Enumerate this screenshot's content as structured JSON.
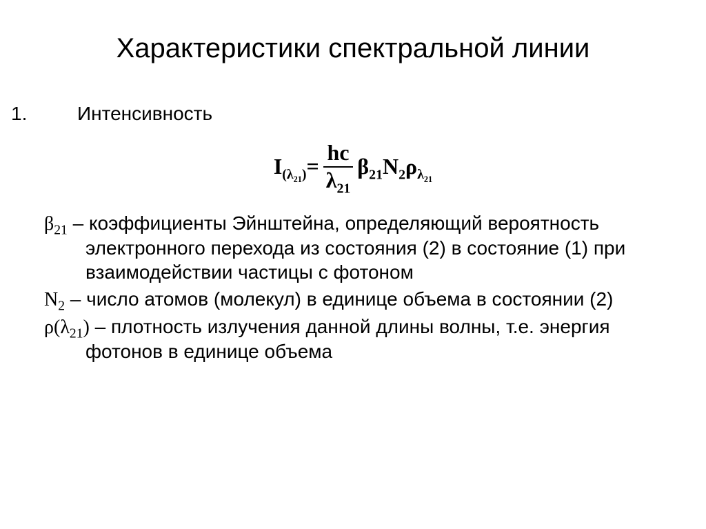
{
  "title": "Характеристики спектральной линии",
  "item_number": "1.",
  "item_label": "Интенсивность",
  "formula": {
    "lhs_I": "I",
    "lhs_sub_open": "(λ",
    "lhs_sub_21": "21",
    "lhs_sub_close": ")",
    "eq": " = ",
    "frac_num": "hc",
    "frac_den_sym": "λ",
    "frac_den_sub": "21",
    "beta": "β",
    "beta_sub": "21",
    "N": "N",
    "N_sub": "2",
    "rho": "ρ",
    "rho_sub_sym": "λ",
    "rho_sub_21": "21"
  },
  "defs": {
    "d1_sym": "β",
    "d1_sub": "21",
    "d1_text": " – коэффициенты Эйнштейна, определяющий вероятность электронного перехода из состояния (2) в состояние (1) при взаимодействии частицы с фотоном",
    "d2_sym": "N",
    "d2_sub": "2",
    "d2_text": " – число атомов (молекул) в единице объема в состоянии (2)",
    "d3_sym_rho": "ρ",
    "d3_sym_open": "(",
    "d3_sym_lambda": "λ",
    "d3_sub": "21",
    "d3_sym_close": ")",
    "d3_text": " – плотность излучения данной длины волны, т.е. энергия фотонов в единице объема"
  }
}
